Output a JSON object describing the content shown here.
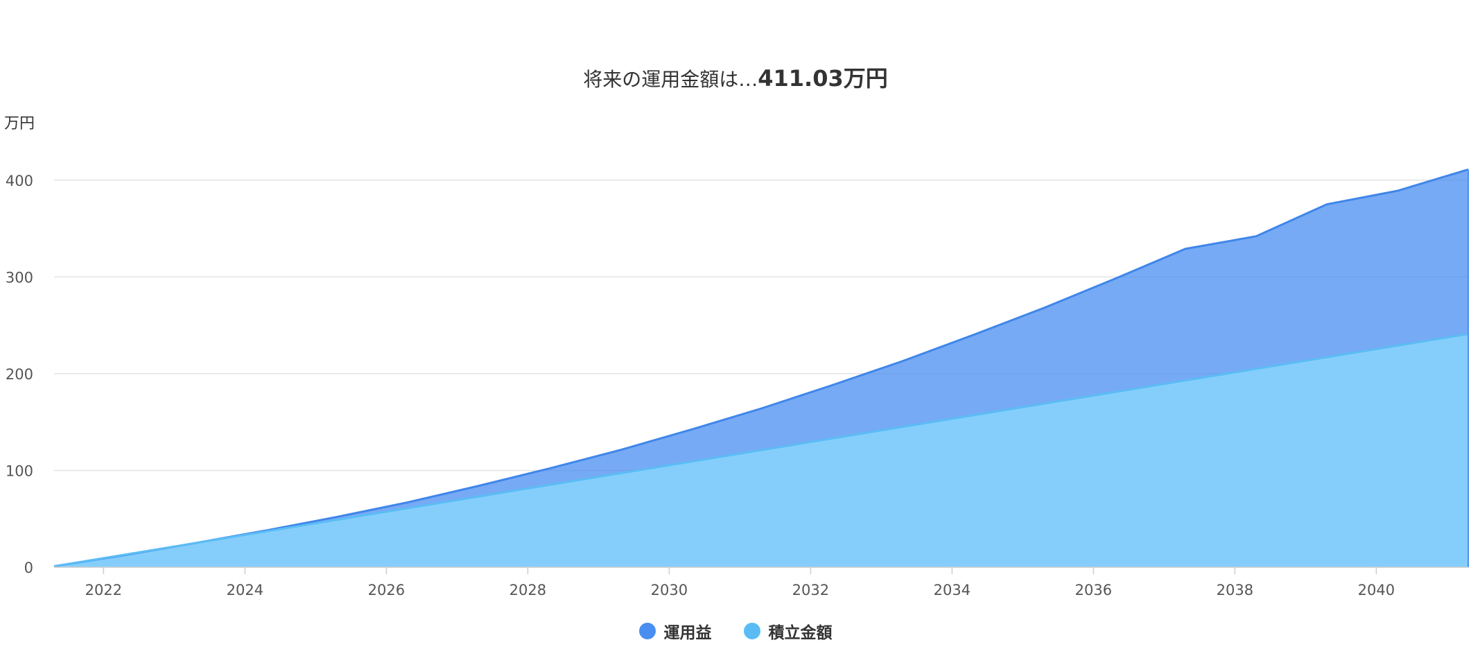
{
  "header": {
    "title_prefix": "将来の運用金額は…",
    "title_value": "411.03万円"
  },
  "chart_data": {
    "type": "area",
    "stacked": true,
    "title": "将来の運用金額は…411.03万円",
    "ylabel": "万円",
    "xlabel": "",
    "xlim": [
      2021.3,
      2041.3
    ],
    "ylim": [
      0,
      450
    ],
    "x_ticks": [
      "2022",
      "2024",
      "2026",
      "2028",
      "2030",
      "2032",
      "2034",
      "2036",
      "2038",
      "2040"
    ],
    "y_ticks": [
      "0",
      "100",
      "200",
      "300",
      "400"
    ],
    "grid": true,
    "legend_position": "bottom-center",
    "x": [
      2021.3,
      2022.3,
      2023.3,
      2024.3,
      2025.3,
      2026.3,
      2027.3,
      2028.3,
      2029.3,
      2030.3,
      2031.3,
      2032.3,
      2033.3,
      2034.3,
      2035.3,
      2036.3,
      2037.3,
      2038.3,
      2039.3,
      2040.3,
      2041.3
    ],
    "series": [
      {
        "name": "運用益",
        "color": "#4a8ef0",
        "total": [
          1,
          12.5,
          25,
          38,
          52,
          67,
          84,
          102,
          121,
          142,
          164,
          188,
          213,
          240,
          268,
          298,
          329,
          342,
          375,
          389,
          411.03
        ]
      },
      {
        "name": "積立金額",
        "color": "#5bbcf5",
        "values": [
          1,
          13,
          25,
          37,
          49,
          61,
          73,
          85,
          97,
          109,
          121,
          133,
          145,
          157,
          169,
          181,
          193,
          205,
          217,
          229,
          241
        ]
      }
    ],
    "final_total": 411.03
  }
}
